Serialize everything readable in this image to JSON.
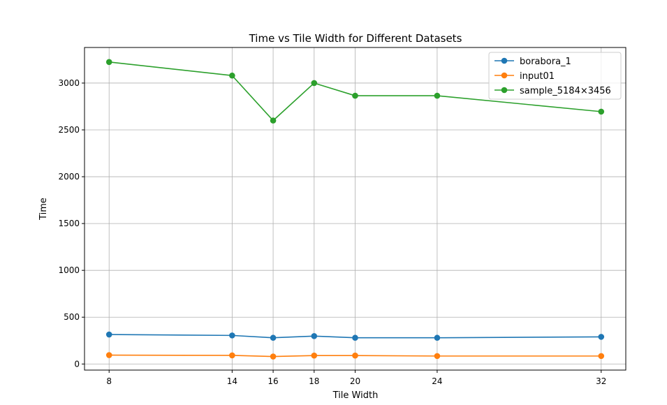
{
  "chart_data": {
    "type": "line",
    "title": "Time vs Tile Width for Different Datasets",
    "xlabel": "Tile Width",
    "ylabel": "Time",
    "x": [
      8,
      14,
      16,
      18,
      20,
      24,
      32
    ],
    "xlim": [
      6.8,
      33.2
    ],
    "ylim": [
      -65,
      3380
    ],
    "yticks": [
      0,
      500,
      1000,
      1500,
      2000,
      2500,
      3000
    ],
    "grid": true,
    "legend_position": "upper right",
    "series": [
      {
        "name": "borabora_1",
        "color": "#1f77b4",
        "values": [
          315,
          305,
          280,
          298,
          280,
          280,
          290
        ]
      },
      {
        "name": "input01",
        "color": "#ff7f0e",
        "values": [
          95,
          92,
          80,
          90,
          90,
          85,
          85
        ]
      },
      {
        "name": "sample_5184×3456",
        "color": "#2ca02c",
        "values": [
          3225,
          3080,
          2600,
          3000,
          2865,
          2865,
          2695
        ]
      }
    ]
  }
}
